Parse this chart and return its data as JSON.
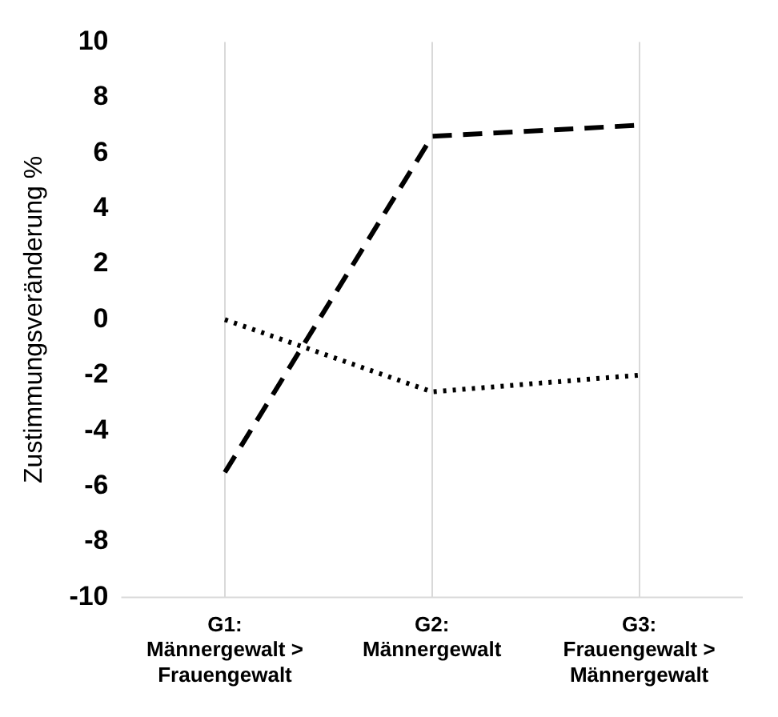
{
  "chart_data": {
    "type": "line",
    "ylabel": "Zustimmungsveränderung %",
    "categories": [
      "G1: Männergewalt > Frauengewalt",
      "G2: Männergewalt",
      "G3: Frauengewalt > Männergewalt"
    ],
    "series": [
      {
        "color": "#000000",
        "line_style": "dashed",
        "values": [
          -5.5,
          6.6,
          7.0
        ]
      },
      {
        "color": "#000000",
        "line_style": "dotted",
        "values": [
          0,
          -2.6,
          -2.0
        ]
      }
    ],
    "ylim": [
      -10,
      10
    ],
    "yticks": [
      -10,
      -8,
      -6,
      -4,
      -2,
      0,
      2,
      4,
      6,
      8,
      10
    ],
    "grid": "x",
    "legend": false,
    "marker": "none"
  }
}
